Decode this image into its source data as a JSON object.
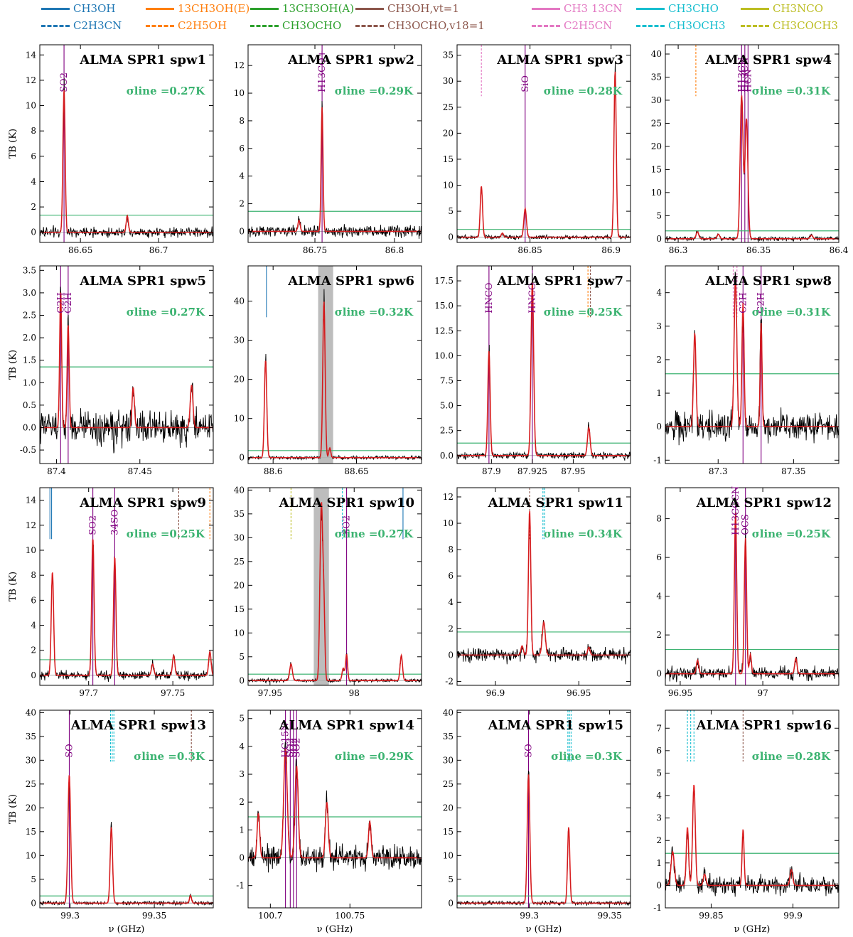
{
  "legend": [
    {
      "label": "CH3OH",
      "color": "#1f77b4",
      "dashed": false
    },
    {
      "label": "13CH3OH(E)",
      "color": "#ff7f0e",
      "dashed": false
    },
    {
      "label": "13CH3OH(A)",
      "color": "#2ca02c",
      "dashed": false
    },
    {
      "label": "CH3OH,vt=1",
      "color": "#8c564b",
      "dashed": false
    },
    {
      "label": "CH3 13CN",
      "color": "#e377c2",
      "dashed": false
    },
    {
      "label": "CH3CHO",
      "color": "#17becf",
      "dashed": false
    },
    {
      "label": "CH3NCO",
      "color": "#bcbd22",
      "dashed": false
    },
    {
      "label": "C2H3CN",
      "color": "#1f77b4",
      "dashed": true
    },
    {
      "label": "C2H5OH",
      "color": "#ff7f0e",
      "dashed": true
    },
    {
      "label": "CH3OCHO",
      "color": "#2ca02c",
      "dashed": true
    },
    {
      "label": "CH3OCHO,v18=1",
      "color": "#8c564b",
      "dashed": true
    },
    {
      "label": "C2H5CN",
      "color": "#e377c2",
      "dashed": true
    },
    {
      "label": "CH3OCH3",
      "color": "#17becf",
      "dashed": true
    },
    {
      "label": "CH3COCH3",
      "color": "#bcbd22",
      "dashed": true
    }
  ],
  "colors": {
    "observed": "#000000",
    "model": "#e41a1c",
    "threshold": "#3cb371",
    "line_id": "#800080",
    "masked_region": "#bdbdbd"
  },
  "chart_data": [
    {
      "type": "line",
      "title": "ALMA SPR1 spw1",
      "sigma_label": "σline =0.27K",
      "sigma": 0.27,
      "xlim": [
        86.624,
        86.735
      ],
      "ylim": [
        -0.8,
        14.8
      ],
      "xticks": [
        86.65,
        86.7
      ],
      "yticks": [
        0,
        2,
        4,
        6,
        8,
        10,
        12,
        14
      ],
      "xlabel": "",
      "ylabel": "TB (K)",
      "threshold": 1.35,
      "peaks": [
        [
          86.6395,
          11.3,
          0.0007
        ],
        [
          86.68,
          1.3,
          0.0007
        ]
      ],
      "line_ids": [
        {
          "x": 86.6395,
          "label": "SO2"
        }
      ],
      "species_marks": [],
      "masked": null
    },
    {
      "type": "line",
      "title": "ALMA SPR1 spw2",
      "sigma_label": "σline =0.29K",
      "sigma": 0.29,
      "xlim": [
        86.708,
        86.817
      ],
      "ylim": [
        -0.8,
        13.5
      ],
      "xticks": [
        86.75,
        86.8
      ],
      "yticks": [
        0,
        2,
        4,
        6,
        8,
        10,
        12
      ],
      "xlabel": "",
      "ylabel": "",
      "threshold": 1.45,
      "peaks": [
        [
          86.7545,
          9.0,
          0.0006
        ],
        [
          86.74,
          0.8,
          0.0007
        ]
      ],
      "line_ids": [
        {
          "x": 86.7545,
          "label": "H13CO+"
        }
      ],
      "species_marks": [],
      "masked": null
    },
    {
      "type": "line",
      "title": "ALMA SPR1 spw3",
      "sigma_label": "σline =0.28K",
      "sigma": 0.28,
      "xlim": [
        86.805,
        86.912
      ],
      "ylim": [
        -1.0,
        37.0
      ],
      "xticks": [
        86.85,
        86.9
      ],
      "yticks": [
        0,
        5,
        10,
        15,
        20,
        25,
        30,
        35
      ],
      "xlabel": "",
      "ylabel": "",
      "threshold": 1.5,
      "peaks": [
        [
          86.82,
          9.8,
          0.0007
        ],
        [
          86.847,
          5.5,
          0.0008
        ],
        [
          86.9025,
          32.0,
          0.0007
        ],
        [
          86.833,
          0.8,
          0.0007
        ]
      ],
      "line_ids": [
        {
          "x": 86.847,
          "label": "SiO"
        }
      ],
      "species_marks": [
        {
          "x": 86.82,
          "color": "#e377c2",
          "dashed": true
        }
      ],
      "masked": null
    },
    {
      "type": "line",
      "title": "ALMA SPR1 spw4",
      "sigma_label": "σline =0.31K",
      "sigma": 0.31,
      "xlim": [
        86.292,
        86.4
      ],
      "ylim": [
        -0.8,
        42.0
      ],
      "xticks": [
        86.3,
        86.35,
        86.4
      ],
      "yticks": [
        0,
        5,
        10,
        15,
        20,
        25,
        30,
        35,
        40
      ],
      "xlabel": "",
      "ylabel": "",
      "threshold": 1.7,
      "peaks": [
        [
          86.3395,
          31.0,
          0.0009
        ],
        [
          86.3425,
          26.0,
          0.0009
        ],
        [
          86.312,
          1.5,
          0.0008
        ],
        [
          86.325,
          1.0,
          0.0008
        ],
        [
          86.383,
          0.8,
          0.0008
        ]
      ],
      "line_ids": [
        {
          "x": 86.3395,
          "label": "H13CN"
        },
        {
          "x": 86.3415,
          "label": "H13CN"
        },
        {
          "x": 86.3435,
          "label": "HCN"
        }
      ],
      "species_marks": [
        {
          "x": 86.311,
          "color": "#ff7f0e",
          "dashed": true
        }
      ],
      "masked": null
    },
    {
      "type": "line",
      "title": "ALMA SPR1 spw5",
      "sigma_label": "σline =0.27K",
      "sigma": 0.27,
      "xlim": [
        87.39,
        87.494
      ],
      "ylim": [
        -0.8,
        3.6
      ],
      "xticks": [
        87.4,
        87.45
      ],
      "yticks": [
        -0.5,
        0.0,
        0.5,
        1.0,
        1.5,
        2.0,
        2.5,
        3.0,
        3.5
      ],
      "xlabel": "",
      "ylabel": "TB (K)",
      "threshold": 1.35,
      "peaks": [
        [
          87.4025,
          3.05,
          0.0006
        ],
        [
          87.407,
          2.3,
          0.0006
        ],
        [
          87.446,
          0.9,
          0.0007
        ],
        [
          87.481,
          0.95,
          0.0008
        ]
      ],
      "line_ids": [
        {
          "x": 87.4025,
          "label": "C2H"
        },
        {
          "x": 87.407,
          "label": "C2H"
        }
      ],
      "species_marks": [],
      "masked": null
    },
    {
      "type": "line",
      "title": "ALMA SPR1 spw6",
      "sigma_label": "σline =0.32K",
      "sigma": 0.32,
      "xlim": [
        88.585,
        88.689
      ],
      "ylim": [
        -1.5,
        49.0
      ],
      "xticks": [
        88.6,
        88.65
      ],
      "yticks": [
        0,
        10,
        20,
        30,
        40
      ],
      "xlabel": "",
      "ylabel": "",
      "threshold": 1.8,
      "peaks": [
        [
          88.5955,
          25.0,
          0.0007
        ],
        [
          88.6305,
          40.0,
          0.0007
        ],
        [
          88.634,
          2.5,
          0.0006
        ]
      ],
      "line_ids": [],
      "species_marks": [
        {
          "x": 88.596,
          "color": "#1f77b4",
          "dashed": false
        }
      ],
      "masked": [
        88.627,
        88.636
      ]
    },
    {
      "type": "line",
      "title": "ALMA SPR1 spw7",
      "sigma_label": "σline =0.25K",
      "sigma": 0.25,
      "xlim": [
        87.879,
        87.985
      ],
      "ylim": [
        -0.8,
        19.0
      ],
      "xticks": [
        87.9,
        87.925,
        87.95
      ],
      "yticks": [
        0.0,
        2.5,
        5.0,
        7.5,
        10.0,
        12.5,
        15.0,
        17.5
      ],
      "xlabel": "",
      "ylabel": "",
      "threshold": 1.25,
      "peaks": [
        [
          87.8985,
          10.5,
          0.0007
        ],
        [
          87.925,
          17.5,
          0.0008
        ],
        [
          87.9595,
          2.8,
          0.0008
        ]
      ],
      "line_ids": [
        {
          "x": 87.8985,
          "label": "HNCO"
        },
        {
          "x": 87.925,
          "label": "HNCO"
        }
      ],
      "species_marks": [
        {
          "x": 87.959,
          "color": "#ff7f0e",
          "dashed": true
        },
        {
          "x": 87.9605,
          "color": "#8c564b",
          "dashed": true
        }
      ],
      "masked": null
    },
    {
      "type": "line",
      "title": "ALMA SPR1 spw8",
      "sigma_label": "σline =0.31K",
      "sigma": 0.31,
      "xlim": [
        87.265,
        87.38
      ],
      "ylim": [
        -1.1,
        4.8
      ],
      "xticks": [
        87.3,
        87.35
      ],
      "yticks": [
        -1,
        0,
        1,
        2,
        3,
        4
      ],
      "xlabel": "",
      "ylabel": "",
      "threshold": 1.58,
      "peaks": [
        [
          87.2845,
          2.8,
          0.0008
        ],
        [
          87.3115,
          4.4,
          0.0009
        ],
        [
          87.3165,
          3.7,
          0.0007
        ],
        [
          87.3285,
          3.1,
          0.0006
        ]
      ],
      "line_ids": [
        {
          "x": 87.3165,
          "label": "C2H"
        },
        {
          "x": 87.3285,
          "label": "C2H"
        }
      ],
      "species_marks": [
        {
          "x": 87.31,
          "color": "#e377c2",
          "dashed": true
        },
        {
          "x": 87.3125,
          "color": "#e377c2",
          "dashed": true
        }
      ],
      "masked": null
    },
    {
      "type": "line",
      "title": "ALMA SPR1 spw9",
      "sigma_label": "σline =0.25K",
      "sigma": 0.25,
      "xlim": [
        97.671,
        97.774
      ],
      "ylim": [
        -0.8,
        15.0
      ],
      "xticks": [
        97.7,
        97.75
      ],
      "yticks": [
        0,
        2,
        4,
        6,
        8,
        10,
        12,
        14
      ],
      "xlabel": "",
      "ylabel": "TB (K)",
      "threshold": 1.25,
      "peaks": [
        [
          97.6785,
          8.3,
          0.0007
        ],
        [
          97.7025,
          11.0,
          0.0007
        ],
        [
          97.7155,
          9.5,
          0.0007
        ],
        [
          97.738,
          0.9,
          0.0007
        ],
        [
          97.7505,
          1.6,
          0.0007
        ],
        [
          97.772,
          1.9,
          0.0007
        ]
      ],
      "line_ids": [
        {
          "x": 97.7025,
          "label": "SO2"
        },
        {
          "x": 97.7155,
          "label": "34SO"
        }
      ],
      "species_marks": [
        {
          "x": 97.677,
          "color": "#1f77b4",
          "dashed": false
        },
        {
          "x": 97.678,
          "color": "#1f77b4",
          "dashed": false
        },
        {
          "x": 97.7535,
          "color": "#8c564b",
          "dashed": true
        },
        {
          "x": 97.772,
          "color": "#ff7f0e",
          "dashed": true
        }
      ],
      "masked": null
    },
    {
      "type": "line",
      "title": "ALMA SPR1 spw10",
      "sigma_label": "σline =0.27K",
      "sigma": 0.27,
      "xlim": [
        97.937,
        98.04
      ],
      "ylim": [
        -1.0,
        40.5
      ],
      "xticks": [
        97.95,
        98.0
      ],
      "yticks": [
        0,
        5,
        10,
        15,
        20,
        25,
        30,
        35,
        40
      ],
      "xlabel": "",
      "ylabel": "",
      "threshold": 1.35,
      "peaks": [
        [
          97.9625,
          3.5,
          0.0008
        ],
        [
          97.9805,
          37.0,
          0.0008
        ],
        [
          97.982,
          14.0,
          0.0006
        ],
        [
          97.9935,
          2.6,
          0.0007
        ],
        [
          97.9955,
          5.5,
          0.0006
        ],
        [
          98.028,
          5.3,
          0.0007
        ]
      ],
      "line_ids": [
        {
          "x": 97.9955,
          "label": "SO2"
        }
      ],
      "species_marks": [
        {
          "x": 97.9625,
          "color": "#bcbd22",
          "dashed": true
        },
        {
          "x": 97.993,
          "color": "#17becf",
          "dashed": true
        },
        {
          "x": 98.029,
          "color": "#1f77b4",
          "dashed": false
        }
      ],
      "masked": [
        97.976,
        97.985
      ]
    },
    {
      "type": "line",
      "title": "ALMA SPR1 spw11",
      "sigma_label": "σline =0.34K",
      "sigma": 0.34,
      "xlim": [
        96.877,
        96.981
      ],
      "ylim": [
        -2.3,
        12.7
      ],
      "xticks": [
        96.9,
        96.95
      ],
      "yticks": [
        -2,
        0,
        2,
        4,
        6,
        8,
        10,
        12
      ],
      "xlabel": "",
      "ylabel": "",
      "threshold": 1.75,
      "peaks": [
        [
          96.9205,
          11.0,
          0.0007
        ],
        [
          96.929,
          2.5,
          0.0009
        ],
        [
          96.916,
          0.7,
          0.0007
        ],
        [
          96.956,
          0.6,
          0.0007
        ]
      ],
      "line_ids": [],
      "species_marks": [
        {
          "x": 96.9205,
          "color": "#8c564b",
          "dashed": true
        },
        {
          "x": 96.9285,
          "color": "#17becf",
          "dashed": true
        },
        {
          "x": 96.9295,
          "color": "#17becf",
          "dashed": true
        }
      ],
      "masked": null
    },
    {
      "type": "line",
      "title": "ALMA SPR1 spw12",
      "sigma_label": "σline =0.25K",
      "sigma": 0.25,
      "xlim": [
        96.941,
        97.046
      ],
      "ylim": [
        -0.6,
        9.6
      ],
      "xticks": [
        96.95,
        97.0
      ],
      "yticks": [
        0,
        2,
        4,
        6,
        8
      ],
      "xlabel": "",
      "ylabel": "",
      "threshold": 1.25,
      "peaks": [
        [
          96.9835,
          8.3,
          0.0007
        ],
        [
          96.9895,
          7.0,
          0.0007
        ],
        [
          96.9925,
          1.0,
          0.0006
        ],
        [
          96.9605,
          0.7,
          0.0007
        ],
        [
          97.02,
          0.8,
          0.0007
        ]
      ],
      "line_ids": [
        {
          "x": 96.9835,
          "label": "H13CCCN"
        },
        {
          "x": 96.9895,
          "label": "OCS"
        }
      ],
      "species_marks": [],
      "masked": null
    },
    {
      "type": "line",
      "title": "ALMA SPR1 spw13",
      "sigma_label": "σline =0.3K",
      "sigma": 0.3,
      "xlim": [
        99.282,
        99.385
      ],
      "ylim": [
        -1.0,
        40.5
      ],
      "xticks": [
        99.3,
        99.35
      ],
      "yticks": [
        0,
        5,
        10,
        15,
        20,
        25,
        30,
        35,
        40
      ],
      "xlabel": "ν (GHz)",
      "ylabel": "TB (K)",
      "threshold": 1.5,
      "peaks": [
        [
          99.2995,
          27.0,
          0.0008
        ],
        [
          99.3245,
          16.0,
          0.0007
        ],
        [
          99.3715,
          1.6,
          0.0006
        ]
      ],
      "line_ids": [
        {
          "x": 99.2995,
          "label": "SO"
        }
      ],
      "species_marks": [
        {
          "x": 99.324,
          "color": "#17becf",
          "dashed": true
        },
        {
          "x": 99.325,
          "color": "#17becf",
          "dashed": true
        },
        {
          "x": 99.326,
          "color": "#17becf",
          "dashed": true
        },
        {
          "x": 99.372,
          "color": "#8c564b",
          "dashed": true
        }
      ],
      "masked": null
    },
    {
      "type": "line",
      "title": "ALMA SPR1 spw14",
      "sigma_label": "σline =0.29K",
      "sigma": 0.29,
      "xlim": [
        100.686,
        100.795
      ],
      "ylim": [
        -1.8,
        5.3
      ],
      "xticks": [
        100.7,
        100.75
      ],
      "yticks": [
        -1,
        0,
        1,
        2,
        3,
        4,
        5
      ],
      "xlabel": "ν (GHz)",
      "ylabel": "",
      "threshold": 1.47,
      "peaks": [
        [
          100.6925,
          1.6,
          0.0008
        ],
        [
          100.7095,
          3.9,
          0.0011
        ],
        [
          100.7165,
          3.3,
          0.001
        ],
        [
          100.7355,
          2.0,
          0.0009
        ],
        [
          100.7625,
          1.3,
          0.0008
        ]
      ],
      "line_ids": [
        {
          "x": 100.7095,
          "label": "HC15N"
        },
        {
          "x": 100.7125,
          "label": "SO2"
        },
        {
          "x": 100.7145,
          "label": "SO2"
        },
        {
          "x": 100.7165,
          "label": "SO2"
        }
      ],
      "species_marks": [],
      "masked": null
    },
    {
      "type": "line",
      "title": "ALMA SPR1 spw15",
      "sigma_label": "σline =0.3K",
      "sigma": 0.3,
      "xlim": [
        99.255,
        99.363
      ],
      "ylim": [
        -1.0,
        40.5
      ],
      "xticks": [
        99.3,
        99.35
      ],
      "yticks": [
        0,
        5,
        10,
        15,
        20,
        25,
        30,
        35,
        40
      ],
      "xlabel": "ν (GHz)",
      "ylabel": "",
      "threshold": 1.5,
      "peaks": [
        [
          99.2995,
          27.0,
          0.0008
        ],
        [
          99.3245,
          16.0,
          0.0007
        ]
      ],
      "line_ids": [
        {
          "x": 99.2995,
          "label": "SO"
        }
      ],
      "species_marks": [
        {
          "x": 99.324,
          "color": "#17becf",
          "dashed": true
        },
        {
          "x": 99.325,
          "color": "#17becf",
          "dashed": true
        },
        {
          "x": 99.326,
          "color": "#17becf",
          "dashed": true
        }
      ],
      "masked": null
    },
    {
      "type": "line",
      "title": "ALMA SPR1 spw16",
      "sigma_label": "σline =0.28K",
      "sigma": 0.28,
      "xlim": [
        99.822,
        99.928
      ],
      "ylim": [
        -1.0,
        7.8
      ],
      "xticks": [
        99.85,
        99.9
      ],
      "yticks": [
        -1,
        0,
        1,
        2,
        3,
        4,
        5,
        6,
        7
      ],
      "xlabel": "ν (GHz)",
      "ylabel": "",
      "threshold": 1.43,
      "peaks": [
        [
          99.8265,
          1.5,
          0.001
        ],
        [
          99.8355,
          2.6,
          0.0007
        ],
        [
          99.8395,
          4.5,
          0.0008
        ],
        [
          99.846,
          0.5,
          0.0008
        ],
        [
          99.8695,
          2.5,
          0.0006
        ],
        [
          99.899,
          0.7,
          0.0008
        ]
      ],
      "line_ids": [],
      "species_marks": [
        {
          "x": 99.8355,
          "color": "#17becf",
          "dashed": true
        },
        {
          "x": 99.8375,
          "color": "#17becf",
          "dashed": true
        },
        {
          "x": 99.8395,
          "color": "#17becf",
          "dashed": true
        },
        {
          "x": 99.8695,
          "color": "#8c564b",
          "dashed": true
        }
      ],
      "masked": null
    }
  ]
}
